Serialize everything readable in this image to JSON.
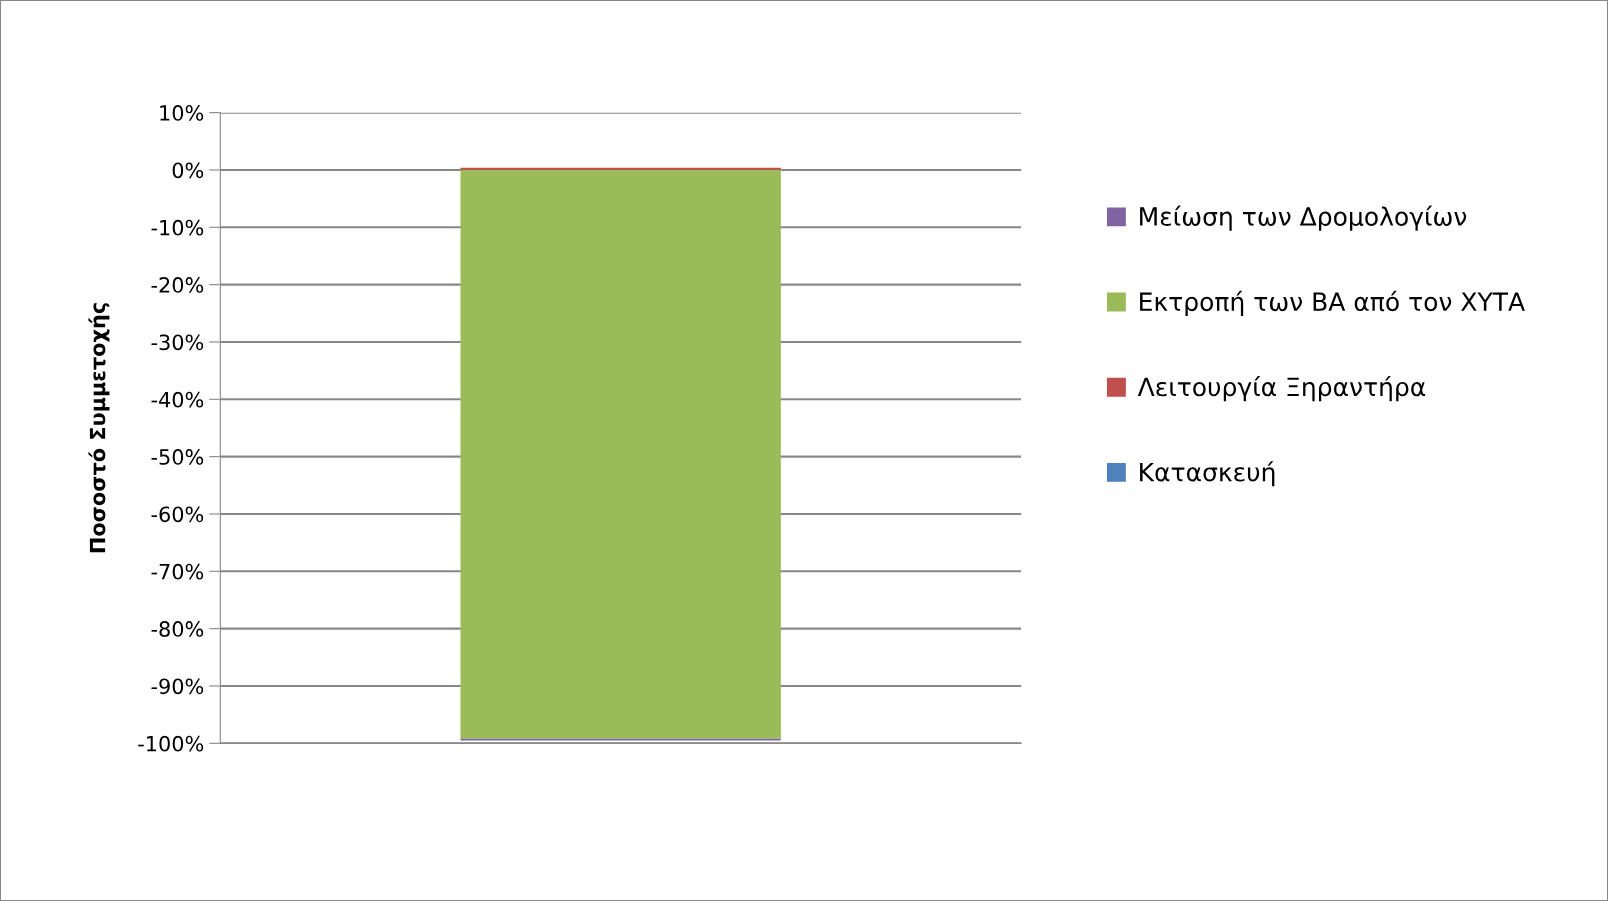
{
  "chart_data": {
    "type": "bar",
    "stacked": true,
    "ylabel": "Ποσοστό Συμμετοχής",
    "categories": [
      null
    ],
    "series": [
      {
        "name": "Κατασκευή",
        "color": "#4f81bd",
        "values": [
          0
        ]
      },
      {
        "name": "Λειτουργία Ξηραντήρα",
        "color": "#c0504d",
        "values": [
          0.4
        ]
      },
      {
        "name": "Εκτροπή των ΒΑ από τον ΧΥΤΑ",
        "color": "#9bbb59",
        "values": [
          -99.2
        ]
      },
      {
        "name": "Μείωση των Δρομολογίων",
        "color": "#8064a2",
        "values": [
          -0.3
        ]
      }
    ],
    "ylim": [
      -100,
      10
    ],
    "yticks": [
      {
        "value": 10,
        "label": "10%"
      },
      {
        "value": 0,
        "label": "0%"
      },
      {
        "value": -10,
        "label": "-10%"
      },
      {
        "value": -20,
        "label": "-20%"
      },
      {
        "value": -30,
        "label": "-30%"
      },
      {
        "value": -40,
        "label": "-40%"
      },
      {
        "value": -50,
        "label": "-50%"
      },
      {
        "value": -60,
        "label": "-60%"
      },
      {
        "value": -70,
        "label": "-70%"
      },
      {
        "value": -80,
        "label": "-80%"
      },
      {
        "value": -90,
        "label": "-90%"
      },
      {
        "value": -100,
        "label": "-100%"
      }
    ],
    "grid": "y",
    "legend": "right"
  }
}
